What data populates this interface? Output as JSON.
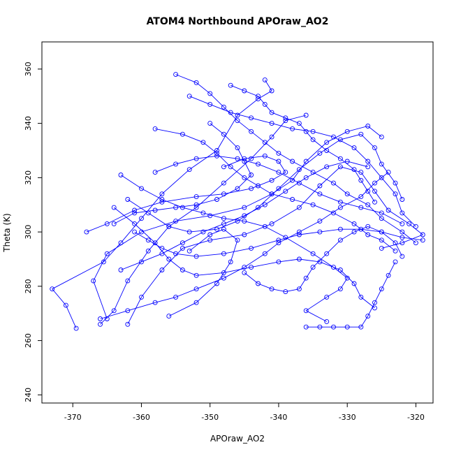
{
  "chart_data": {
    "type": "scatter",
    "title": "ATOM4 Northbound APOraw_AO2",
    "xlabel": "APOraw_AO2",
    "ylabel": "Theta (K)",
    "xlim": [
      -374.5,
      -317.5
    ],
    "ylim": [
      237,
      370
    ],
    "xticks": [
      -370,
      -360,
      -350,
      -340,
      -330,
      -320
    ],
    "yticks": [
      240,
      260,
      280,
      300,
      320,
      340,
      360
    ],
    "grid": false,
    "connected": true,
    "color": "#0000ff",
    "series": [
      {
        "values": [
          [
            -369.5,
            264.5
          ],
          [
            -371,
            273
          ],
          [
            -373,
            279
          ],
          [
            -365.5,
            289
          ],
          [
            -363,
            296
          ],
          [
            -360,
            305
          ],
          [
            -357,
            314
          ],
          [
            -353,
            323
          ],
          [
            -349,
            330
          ],
          [
            -346,
            343
          ],
          [
            -343,
            349
          ],
          [
            -341,
            352
          ],
          [
            -342,
            356
          ]
        ]
      },
      {
        "values": [
          [
            -366,
            266
          ],
          [
            -364,
            271
          ],
          [
            -362,
            282
          ],
          [
            -359,
            293
          ],
          [
            -356,
            302
          ],
          [
            -352,
            309
          ],
          [
            -348,
            318
          ],
          [
            -344,
            327
          ],
          [
            -341,
            335
          ],
          [
            -339,
            341
          ],
          [
            -336,
            343
          ]
        ]
      },
      {
        "values": [
          [
            -365,
            268
          ],
          [
            -367,
            282
          ],
          [
            -365,
            292
          ],
          [
            -360,
            300
          ],
          [
            -355,
            304
          ],
          [
            -350,
            306
          ],
          [
            -345,
            309
          ],
          [
            -341,
            314
          ],
          [
            -338,
            319
          ],
          [
            -336,
            326
          ],
          [
            -333,
            333
          ],
          [
            -330,
            337
          ],
          [
            -327,
            339
          ],
          [
            -325,
            335
          ]
        ]
      },
      {
        "values": [
          [
            -362,
            266
          ],
          [
            -360,
            276
          ],
          [
            -357,
            286
          ],
          [
            -354,
            294
          ],
          [
            -350,
            297
          ],
          [
            -345,
            299
          ],
          [
            -341,
            303
          ],
          [
            -337,
            309
          ],
          [
            -334,
            317
          ],
          [
            -331,
            324
          ],
          [
            -328,
            322
          ],
          [
            -326,
            315
          ],
          [
            -324,
            308
          ],
          [
            -321,
            303
          ],
          [
            -319,
            299
          ],
          [
            -322,
            296
          ],
          [
            -325,
            294
          ]
        ]
      },
      {
        "values": [
          [
            -356,
            269
          ],
          [
            -352,
            274
          ],
          [
            -349,
            281
          ],
          [
            -347,
            289
          ],
          [
            -346,
            297
          ],
          [
            -348,
            301
          ],
          [
            -350,
            299
          ],
          [
            -353,
            293
          ]
        ]
      },
      {
        "values": [
          [
            -363,
            321
          ],
          [
            -360,
            316
          ],
          [
            -357,
            312
          ],
          [
            -354,
            309
          ],
          [
            -351,
            307
          ],
          [
            -348,
            305
          ],
          [
            -345,
            304
          ],
          [
            -342,
            302
          ],
          [
            -339,
            298
          ],
          [
            -335,
            292
          ],
          [
            -332,
            287
          ],
          [
            -330,
            283
          ],
          [
            -331,
            279
          ],
          [
            -333,
            276
          ],
          [
            -336,
            271
          ],
          [
            -333,
            267
          ]
        ]
      },
      {
        "values": [
          [
            -362,
            312
          ],
          [
            -359,
            307
          ],
          [
            -356,
            302
          ],
          [
            -353,
            300
          ],
          [
            -349,
            301
          ],
          [
            -346,
            304
          ],
          [
            -343,
            309
          ],
          [
            -340,
            316
          ],
          [
            -337,
            323
          ],
          [
            -334,
            329
          ],
          [
            -331,
            334
          ],
          [
            -328,
            336
          ],
          [
            -326,
            331
          ],
          [
            -325,
            325
          ],
          [
            -323,
            318
          ],
          [
            -322,
            312
          ]
        ]
      },
      {
        "values": [
          [
            -358,
            338
          ],
          [
            -354,
            336
          ],
          [
            -351,
            333
          ],
          [
            -349,
            329
          ],
          [
            -347,
            324
          ],
          [
            -345,
            320
          ],
          [
            -343,
            317
          ],
          [
            -341,
            314
          ],
          [
            -338,
            312
          ],
          [
            -335,
            310
          ],
          [
            -332,
            307
          ],
          [
            -329,
            303
          ],
          [
            -327,
            299
          ],
          [
            -325,
            297
          ],
          [
            -323,
            293
          ]
        ]
      },
      {
        "values": [
          [
            -355,
            358
          ],
          [
            -352,
            355
          ],
          [
            -350,
            351
          ],
          [
            -348,
            346
          ],
          [
            -346,
            341
          ],
          [
            -344,
            337
          ],
          [
            -342,
            333
          ],
          [
            -340,
            329
          ],
          [
            -338,
            326
          ],
          [
            -335,
            322
          ],
          [
            -332,
            318
          ],
          [
            -330,
            314
          ],
          [
            -327,
            310
          ],
          [
            -325,
            305
          ],
          [
            -322,
            300
          ],
          [
            -320,
            296
          ]
        ]
      },
      {
        "values": [
          [
            -353,
            350
          ],
          [
            -350,
            347
          ],
          [
            -347,
            344
          ],
          [
            -344,
            342
          ],
          [
            -341,
            340
          ],
          [
            -338,
            338
          ],
          [
            -335,
            337
          ],
          [
            -332,
            335
          ],
          [
            -329,
            331
          ],
          [
            -327,
            326
          ],
          [
            -325,
            320
          ],
          [
            -323,
            314
          ],
          [
            -322,
            307
          ],
          [
            -320,
            302
          ]
        ]
      },
      {
        "values": [
          [
            -368,
            300
          ],
          [
            -365,
            303
          ],
          [
            -361,
            308
          ],
          [
            -357,
            311
          ],
          [
            -352,
            313
          ],
          [
            -348,
            314
          ],
          [
            -344,
            316
          ],
          [
            -341,
            319
          ],
          [
            -339,
            322
          ],
          [
            -340,
            326
          ],
          [
            -342,
            328
          ],
          [
            -345,
            327
          ],
          [
            -348,
            324
          ]
        ]
      },
      {
        "values": [
          [
            -364,
            309
          ],
          [
            -361,
            303
          ],
          [
            -358,
            296
          ],
          [
            -356,
            290
          ],
          [
            -354,
            286
          ],
          [
            -352,
            284
          ],
          [
            -348,
            285
          ],
          [
            -344,
            287
          ],
          [
            -340,
            289
          ],
          [
            -337,
            290
          ],
          [
            -334,
            289
          ],
          [
            -331,
            286
          ],
          [
            -329,
            281
          ],
          [
            -328,
            276
          ],
          [
            -326,
            272
          ]
        ]
      },
      {
        "values": [
          [
            -345,
            285
          ],
          [
            -343,
            281
          ],
          [
            -341,
            279
          ],
          [
            -339,
            278
          ],
          [
            -337,
            279
          ],
          [
            -336,
            283
          ],
          [
            -335,
            287
          ],
          [
            -333,
            292
          ],
          [
            -331,
            297
          ],
          [
            -329,
            300
          ],
          [
            -327,
            302
          ],
          [
            -325,
            300
          ],
          [
            -323,
            296
          ],
          [
            -322,
            291
          ]
        ]
      },
      {
        "values": [
          [
            -366,
            268
          ],
          [
            -362,
            271
          ],
          [
            -358,
            274
          ],
          [
            -355,
            276
          ],
          [
            -352,
            279
          ],
          [
            -348,
            283
          ],
          [
            -345,
            287
          ],
          [
            -342,
            292
          ],
          [
            -340,
            296
          ],
          [
            -337,
            300
          ],
          [
            -334,
            304
          ],
          [
            -331,
            309
          ],
          [
            -328,
            313
          ],
          [
            -326,
            318
          ],
          [
            -324,
            322
          ]
        ]
      },
      {
        "values": [
          [
            -350,
            340
          ],
          [
            -348,
            336
          ],
          [
            -346,
            331
          ],
          [
            -345,
            326
          ],
          [
            -344,
            321
          ],
          [
            -346,
            316
          ],
          [
            -349,
            312
          ],
          [
            -352,
            310
          ],
          [
            -355,
            309
          ],
          [
            -358,
            308
          ],
          [
            -361,
            307
          ],
          [
            -364,
            303
          ]
        ]
      },
      {
        "values": [
          [
            -347,
            354
          ],
          [
            -345,
            352
          ],
          [
            -343,
            350
          ],
          [
            -342,
            347
          ],
          [
            -341,
            344
          ],
          [
            -339,
            342
          ],
          [
            -337,
            340
          ],
          [
            -336,
            337
          ],
          [
            -335,
            334
          ],
          [
            -333,
            330
          ],
          [
            -331,
            327
          ],
          [
            -329,
            323
          ],
          [
            -328,
            319
          ],
          [
            -327,
            315
          ],
          [
            -326,
            311
          ]
        ]
      },
      {
        "values": [
          [
            -361,
            300
          ],
          [
            -359,
            297
          ],
          [
            -357,
            294
          ],
          [
            -355,
            292
          ],
          [
            -352,
            291
          ],
          [
            -348,
            292
          ],
          [
            -344,
            294
          ],
          [
            -340,
            297
          ],
          [
            -337,
            299
          ],
          [
            -334,
            300
          ],
          [
            -331,
            301
          ],
          [
            -328,
            301
          ],
          [
            -325,
            300
          ],
          [
            -322,
            298
          ],
          [
            -319,
            297
          ]
        ]
      },
      {
        "values": [
          [
            -336,
            265
          ],
          [
            -334,
            265
          ],
          [
            -332,
            265
          ],
          [
            -330,
            265
          ],
          [
            -328,
            265
          ],
          [
            -327,
            269
          ],
          [
            -326,
            274
          ],
          [
            -325,
            279
          ],
          [
            -324,
            284
          ],
          [
            -323,
            289
          ]
        ]
      },
      {
        "values": [
          [
            -358,
            322
          ],
          [
            -355,
            325
          ],
          [
            -352,
            327
          ],
          [
            -349,
            328
          ],
          [
            -346,
            327
          ],
          [
            -343,
            325
          ],
          [
            -340,
            322
          ],
          [
            -337,
            318
          ],
          [
            -334,
            314
          ],
          [
            -331,
            311
          ],
          [
            -328,
            309
          ],
          [
            -325,
            307
          ],
          [
            -322,
            303
          ]
        ]
      },
      {
        "values": [
          [
            -363,
            286
          ],
          [
            -360,
            289
          ],
          [
            -357,
            292
          ],
          [
            -354,
            296
          ],
          [
            -351,
            300
          ],
          [
            -348,
            303
          ],
          [
            -345,
            306
          ],
          [
            -342,
            310
          ],
          [
            -339,
            315
          ],
          [
            -336,
            320
          ],
          [
            -333,
            324
          ],
          [
            -330,
            326
          ],
          [
            -327,
            324
          ]
        ]
      }
    ]
  }
}
